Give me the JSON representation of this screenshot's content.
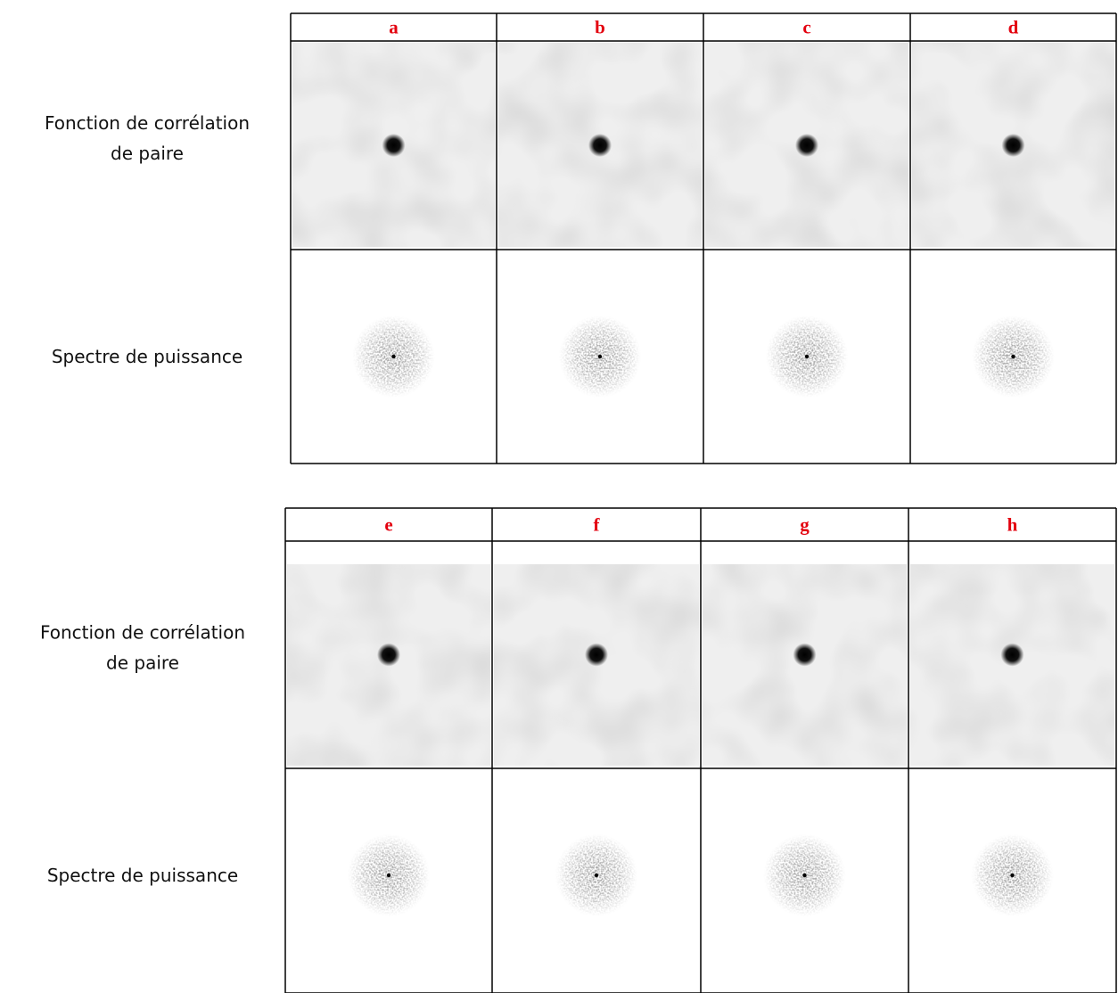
{
  "tables": [
    {
      "headers": [
        "a",
        "b",
        "c",
        "d"
      ],
      "rows": [
        {
          "label": [
            "Fonction de corrélation",
            "de paire"
          ]
        },
        {
          "label": [
            "Spectre de puissance"
          ]
        }
      ]
    },
    {
      "headers": [
        "e",
        "f",
        "g",
        "h"
      ],
      "rows": [
        {
          "label": [
            "Fonction de corrélation",
            "de paire"
          ]
        },
        {
          "label": [
            "Spectre de puissance"
          ]
        }
      ]
    }
  ]
}
